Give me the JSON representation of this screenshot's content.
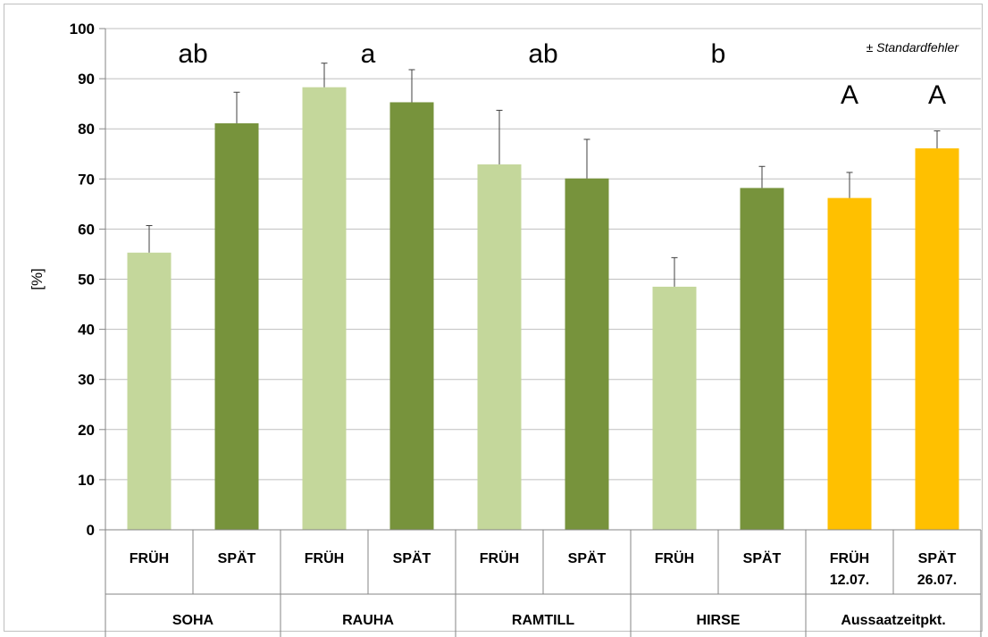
{
  "chart_data": {
    "type": "bar",
    "ylabel": "[%]",
    "ylim": [
      0,
      100
    ],
    "yticks": [
      0,
      10,
      20,
      30,
      40,
      50,
      60,
      70,
      80,
      90,
      100
    ],
    "grid": true,
    "note": "± Standardfehler",
    "bars": [
      {
        "label": [
          "FRÜH"
        ],
        "value": 55.3,
        "error": 5.4,
        "color": "#c4d79b"
      },
      {
        "label": [
          "SPÄT"
        ],
        "value": 81.1,
        "error": 6.2,
        "color": "#77933c"
      },
      {
        "label": [
          "FRÜH"
        ],
        "value": 88.3,
        "error": 4.8,
        "color": "#c4d79b"
      },
      {
        "label": [
          "SPÄT"
        ],
        "value": 85.3,
        "error": 6.5,
        "color": "#77933c"
      },
      {
        "label": [
          "FRÜH"
        ],
        "value": 72.9,
        "error": 10.8,
        "color": "#c4d79b"
      },
      {
        "label": [
          "SPÄT"
        ],
        "value": 70.1,
        "error": 7.8,
        "color": "#77933c"
      },
      {
        "label": [
          "FRÜH"
        ],
        "value": 48.5,
        "error": 5.8,
        "color": "#c4d79b"
      },
      {
        "label": [
          "SPÄT"
        ],
        "value": 68.2,
        "error": 4.3,
        "color": "#77933c"
      },
      {
        "label": [
          "FRÜH",
          "12.07."
        ],
        "value": 66.2,
        "error": 5.1,
        "color": "#ffc000"
      },
      {
        "label": [
          "SPÄT",
          "26.07."
        ],
        "value": 76.1,
        "error": 3.5,
        "color": "#ffc000"
      }
    ],
    "groups": [
      "SOHA",
      "RAUHA",
      "RAMTILL",
      "HIRSE",
      "Aussaatzeitpkt."
    ],
    "group_letters": [
      "ab",
      "a",
      "ab",
      "b",
      ""
    ],
    "bar_letters": [
      "",
      "",
      "",
      "",
      "",
      "",
      "",
      "",
      "A",
      "A"
    ]
  }
}
